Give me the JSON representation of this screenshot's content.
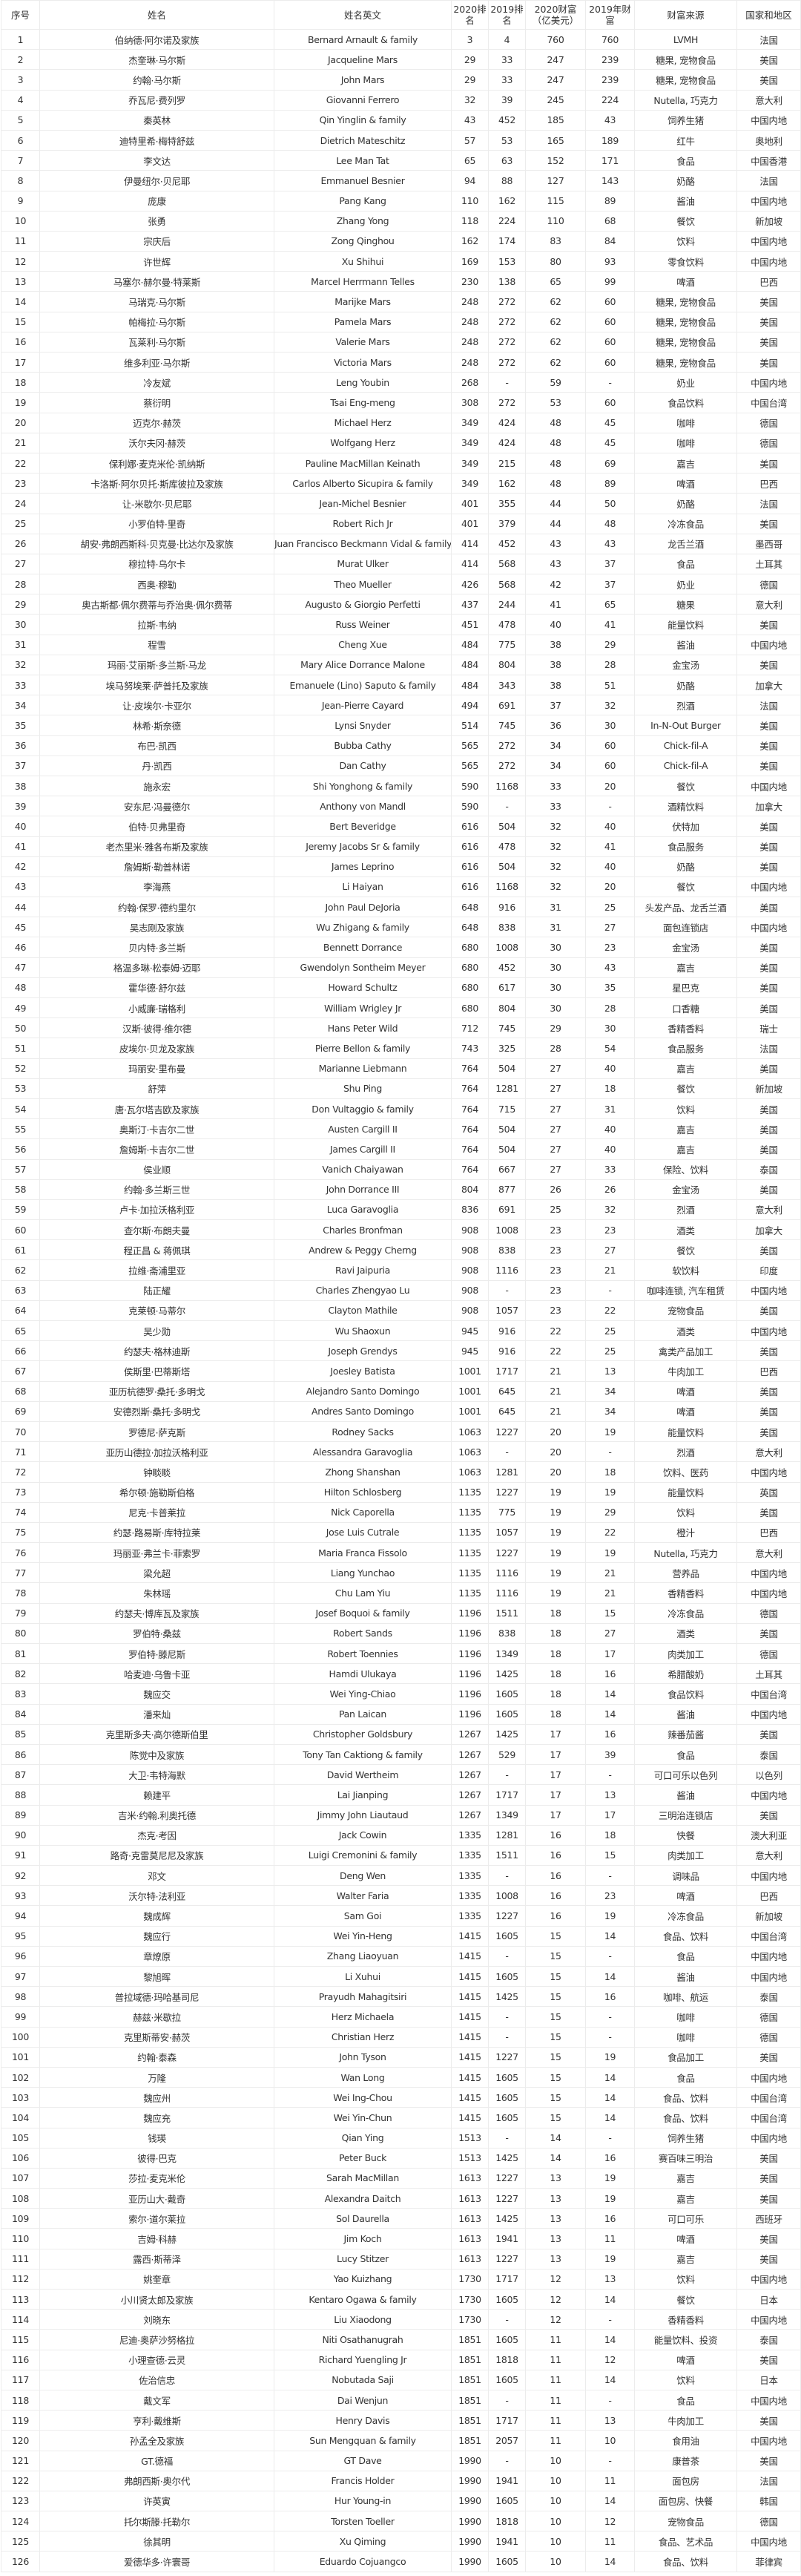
{
  "headers": [
    "序号",
    "姓名",
    "姓名英文",
    "2020排名",
    "2019排名",
    "2020财富（亿美元）",
    "2019年财富",
    "财富来源",
    "国家和地区"
  ],
  "rows": [
    [
      "1",
      "伯纳德·阿尔诺及家族",
      "Bernard Arnault & family",
      "3",
      "4",
      "760",
      "760",
      "LVMH",
      "法国"
    ],
    [
      "2",
      "杰奎琳·马尔斯",
      "Jacqueline Mars",
      "29",
      "33",
      "247",
      "239",
      "糖果, 宠物食品",
      "美国"
    ],
    [
      "3",
      "约翰·马尔斯",
      "John Mars",
      "29",
      "33",
      "247",
      "239",
      "糖果, 宠物食品",
      "美国"
    ],
    [
      "4",
      "乔瓦尼·费列罗",
      "Giovanni Ferrero",
      "32",
      "39",
      "245",
      "224",
      "Nutella, 巧克力",
      "意大利"
    ],
    [
      "5",
      "秦英林",
      "Qin Yinglin & family",
      "43",
      "452",
      "185",
      "43",
      "饲养生猪",
      "中国内地"
    ],
    [
      "6",
      "迪特里希·梅特舒兹",
      "Dietrich Mateschitz",
      "57",
      "53",
      "165",
      "189",
      "红牛",
      "奥地利"
    ],
    [
      "7",
      "李文达",
      "Lee Man Tat",
      "65",
      "63",
      "152",
      "171",
      "食品",
      "中国香港"
    ],
    [
      "8",
      "伊曼纽尔·贝尼耶",
      "Emmanuel Besnier",
      "94",
      "88",
      "127",
      "143",
      "奶酪",
      "法国"
    ],
    [
      "9",
      "庞康",
      "Pang Kang",
      "110",
      "162",
      "115",
      "89",
      "酱油",
      "中国内地"
    ],
    [
      "10",
      "张勇",
      "Zhang Yong",
      "118",
      "224",
      "110",
      "68",
      "餐饮",
      "新加坡"
    ],
    [
      "11",
      "宗庆后",
      "Zong Qinghou",
      "162",
      "174",
      "83",
      "84",
      "饮料",
      "中国内地"
    ],
    [
      "12",
      "许世辉",
      "Xu Shihui",
      "169",
      "153",
      "80",
      "93",
      "零食饮料",
      "中国内地"
    ],
    [
      "13",
      "马塞尔·赫尔曼·特莱斯",
      "Marcel Herrmann Telles",
      "230",
      "138",
      "65",
      "99",
      "啤酒",
      "巴西"
    ],
    [
      "14",
      "马瑞克·马尔斯",
      "Marijke Mars",
      "248",
      "272",
      "62",
      "60",
      "糖果, 宠物食品",
      "美国"
    ],
    [
      "15",
      "帕梅拉·马尔斯",
      "Pamela Mars",
      "248",
      "272",
      "62",
      "60",
      "糖果, 宠物食品",
      "美国"
    ],
    [
      "16",
      "瓦莱利·马尔斯",
      "Valerie Mars",
      "248",
      "272",
      "62",
      "60",
      "糖果, 宠物食品",
      "美国"
    ],
    [
      "17",
      "维多利亚·马尔斯",
      "Victoria Mars",
      "248",
      "272",
      "62",
      "60",
      "糖果, 宠物食品",
      "美国"
    ],
    [
      "18",
      "冷友斌",
      "Leng Youbin",
      "268",
      "-",
      "59",
      "-",
      "奶业",
      "中国内地"
    ],
    [
      "19",
      "蔡衍明",
      "Tsai Eng-meng",
      "308",
      "272",
      "53",
      "60",
      "食品饮料",
      "中国台湾"
    ],
    [
      "20",
      "迈克尔·赫茨",
      "Michael Herz",
      "349",
      "424",
      "48",
      "45",
      "咖啡",
      "德国"
    ],
    [
      "21",
      "沃尔夫冈·赫茨",
      "Wolfgang Herz",
      "349",
      "424",
      "48",
      "45",
      "咖啡",
      "德国"
    ],
    [
      "22",
      "保利娜·麦克米伦·凯纳斯",
      "Pauline MacMillan Keinath",
      "349",
      "215",
      "48",
      "69",
      "嘉吉",
      "美国"
    ],
    [
      "23",
      "卡洛斯·阿尔贝托·斯库彼拉及家族",
      "Carlos Alberto Sicupira & family",
      "349",
      "162",
      "48",
      "89",
      "啤酒",
      "巴西"
    ],
    [
      "24",
      "让-米歇尔·贝尼耶",
      "Jean-Michel Besnier",
      "401",
      "355",
      "44",
      "50",
      "奶酪",
      "法国"
    ],
    [
      "25",
      "小罗伯特·里奇",
      "Robert Rich Jr",
      "401",
      "379",
      "44",
      "48",
      "冷冻食品",
      "美国"
    ],
    [
      "26",
      "胡安·弗朗西斯科·贝克曼·比达尔及家族",
      "Juan Francisco Beckmann Vidal & family",
      "414",
      "452",
      "43",
      "43",
      "龙舌兰酒",
      "墨西哥"
    ],
    [
      "27",
      "穆拉特·乌尔卡",
      "Murat Ulker",
      "414",
      "568",
      "43",
      "37",
      "食品",
      "土耳其"
    ],
    [
      "28",
      "西奥·穆勒",
      "Theo Mueller",
      "426",
      "568",
      "42",
      "37",
      "奶业",
      "德国"
    ],
    [
      "29",
      "奥古斯都·佩尔费蒂与乔治奥·佩尔费蒂",
      "Augusto & Giorgio Perfetti",
      "437",
      "244",
      "41",
      "65",
      "糖果",
      "意大利"
    ],
    [
      "30",
      "拉斯·韦纳",
      "Russ Weiner",
      "451",
      "478",
      "40",
      "41",
      "能量饮料",
      "美国"
    ],
    [
      "31",
      "程雪",
      "Cheng Xue",
      "484",
      "775",
      "38",
      "29",
      "酱油",
      "中国内地"
    ],
    [
      "32",
      "玛丽·艾丽斯·多兰斯·马龙",
      "Mary Alice Dorrance Malone",
      "484",
      "804",
      "38",
      "28",
      "金宝汤",
      "美国"
    ],
    [
      "33",
      "埃马努埃莱·萨普托及家族",
      "Emanuele (Lino) Saputo & family",
      "484",
      "343",
      "38",
      "51",
      "奶酪",
      "加拿大"
    ],
    [
      "34",
      "让·皮埃尔·卡亚尔",
      "Jean-Pierre Cayard",
      "494",
      "691",
      "37",
      "32",
      "烈酒",
      "法国"
    ],
    [
      "35",
      "林希·斯奈德",
      "Lynsi Snyder",
      "514",
      "745",
      "36",
      "30",
      "In-N-Out Burger",
      "美国"
    ],
    [
      "36",
      "布巴·凯西",
      "Bubba Cathy",
      "565",
      "272",
      "34",
      "60",
      "Chick-fil-A",
      "美国"
    ],
    [
      "37",
      "丹·凯西",
      "Dan Cathy",
      "565",
      "272",
      "34",
      "60",
      "Chick-fil-A",
      "美国"
    ],
    [
      "38",
      "施永宏",
      "Shi Yonghong & family",
      "590",
      "1168",
      "33",
      "20",
      "餐饮",
      "中国内地"
    ],
    [
      "39",
      "安东尼·冯曼德尔",
      "Anthony von Mandl",
      "590",
      "-",
      "33",
      "-",
      "酒精饮料",
      "加拿大"
    ],
    [
      "40",
      "伯特·贝弗里奇",
      "Bert Beveridge",
      "616",
      "504",
      "32",
      "40",
      "伏特加",
      "美国"
    ],
    [
      "41",
      "老杰里米·雅各布斯及家族",
      "Jeremy Jacobs Sr & family",
      "616",
      "478",
      "32",
      "41",
      "食品服务",
      "美国"
    ],
    [
      "42",
      "詹姆斯·勒普林诺",
      "James Leprino",
      "616",
      "504",
      "32",
      "40",
      "奶酪",
      "美国"
    ],
    [
      "43",
      "李海燕",
      "Li Haiyan",
      "616",
      "1168",
      "32",
      "20",
      "餐饮",
      "中国内地"
    ],
    [
      "44",
      "约翰·保罗·德约里尔",
      "John Paul DeJoria",
      "648",
      "916",
      "31",
      "25",
      "头发产品、龙舌兰酒",
      "美国"
    ],
    [
      "45",
      "吴志刚及家族",
      "Wu Zhigang & family",
      "648",
      "838",
      "31",
      "27",
      "面包连锁店",
      "中国内地"
    ],
    [
      "46",
      "贝内特·多兰斯",
      "Bennett Dorrance",
      "680",
      "1008",
      "30",
      "23",
      "金宝汤",
      "美国"
    ],
    [
      "47",
      "格温多琳·松泰姆·迈耶",
      "Gwendolyn Sontheim Meyer",
      "680",
      "452",
      "30",
      "43",
      "嘉吉",
      "美国"
    ],
    [
      "48",
      "霍华德·舒尔兹",
      "Howard Schultz",
      "680",
      "617",
      "30",
      "35",
      "星巴克",
      "美国"
    ],
    [
      "49",
      "小威廉·瑞格利",
      "William Wrigley Jr",
      "680",
      "804",
      "30",
      "28",
      "口香糖",
      "美国"
    ],
    [
      "50",
      "汉斯·彼得·维尔德",
      "Hans Peter Wild",
      "712",
      "745",
      "29",
      "30",
      "香精香料",
      "瑞士"
    ],
    [
      "51",
      "皮埃尔·贝龙及家族",
      "Pierre Bellon & family",
      "743",
      "325",
      "28",
      "54",
      "食品服务",
      "法国"
    ],
    [
      "52",
      "玛丽安·里布曼",
      "Marianne Liebmann",
      "764",
      "504",
      "27",
      "40",
      "嘉吉",
      "美国"
    ],
    [
      "53",
      "舒萍",
      "Shu Ping",
      "764",
      "1281",
      "27",
      "18",
      "餐饮",
      "新加坡"
    ],
    [
      "54",
      "唐·瓦尔塔吉欧及家族",
      "Don Vultaggio & family",
      "764",
      "715",
      "27",
      "31",
      "饮料",
      "美国"
    ],
    [
      "55",
      "奥斯汀·卡吉尔二世",
      "Austen Cargill II",
      "764",
      "504",
      "27",
      "40",
      "嘉吉",
      "美国"
    ],
    [
      "56",
      "詹姆斯·卡吉尔二世",
      "James Cargill II",
      "764",
      "504",
      "27",
      "40",
      "嘉吉",
      "美国"
    ],
    [
      "57",
      "侯业顺",
      "Vanich Chaiyawan",
      "764",
      "667",
      "27",
      "33",
      "保险、饮料",
      "泰国"
    ],
    [
      "58",
      "约翰·多兰斯三世",
      "John Dorrance III",
      "804",
      "877",
      "26",
      "26",
      "金宝汤",
      "美国"
    ],
    [
      "59",
      "卢卡·加拉沃格利亚",
      "Luca Garavoglia",
      "836",
      "691",
      "25",
      "32",
      "烈酒",
      "意大利"
    ],
    [
      "60",
      "查尔斯·布朗夫曼",
      "Charles Bronfman",
      "908",
      "1008",
      "23",
      "23",
      "酒类",
      "加拿大"
    ],
    [
      "61",
      "程正昌 & 蒋佩琪",
      "Andrew & Peggy Cherng",
      "908",
      "838",
      "23",
      "27",
      "餐饮",
      "美国"
    ],
    [
      "62",
      "拉维·斋浦里亚",
      "Ravi Jaipuria",
      "908",
      "1116",
      "23",
      "21",
      "软饮料",
      "印度"
    ],
    [
      "63",
      "陆正耀",
      "Charles Zhengyao Lu",
      "908",
      "-",
      "23",
      "-",
      "咖啡连锁, 汽车租赁",
      "中国内地"
    ],
    [
      "64",
      "克莱顿·马蒂尔",
      "Clayton Mathile",
      "908",
      "1057",
      "23",
      "22",
      "宠物食品",
      "美国"
    ],
    [
      "65",
      "吴少勋",
      "Wu Shaoxun",
      "945",
      "916",
      "22",
      "25",
      "酒类",
      "中国内地"
    ],
    [
      "66",
      "约瑟夫·格林迪斯",
      "Joseph Grendys",
      "945",
      "916",
      "22",
      "25",
      "禽类产品加工",
      "美国"
    ],
    [
      "67",
      "侯斯里·巴蒂斯塔",
      "Joesley Batista",
      "1001",
      "1717",
      "21",
      "13",
      "牛肉加工",
      "巴西"
    ],
    [
      "68",
      "亚历杭德罗·桑托·多明戈",
      "Alejandro Santo Domingo",
      "1001",
      "645",
      "21",
      "34",
      "啤酒",
      "美国"
    ],
    [
      "69",
      "安德烈斯·桑托·多明戈",
      "Andres Santo Domingo",
      "1001",
      "645",
      "21",
      "34",
      "啤酒",
      "美国"
    ],
    [
      "70",
      "罗德尼·萨克斯",
      "Rodney Sacks",
      "1063",
      "1227",
      "20",
      "19",
      "能量饮料",
      "美国"
    ],
    [
      "71",
      "亚历山德拉·加拉沃格利亚",
      "Alessandra Garavoglia",
      "1063",
      "-",
      "20",
      "-",
      "烈酒",
      "意大利"
    ],
    [
      "72",
      "钟睒睒",
      "Zhong Shanshan",
      "1063",
      "1281",
      "20",
      "18",
      "饮料、医药",
      "中国内地"
    ],
    [
      "73",
      "希尔顿·施勒斯伯格",
      "Hilton Schlosberg",
      "1135",
      "1227",
      "19",
      "19",
      "能量饮料",
      "英国"
    ],
    [
      "74",
      "尼克·卡普莱拉",
      "Nick Caporella",
      "1135",
      "775",
      "19",
      "29",
      "饮料",
      "美国"
    ],
    [
      "75",
      "约瑟·路易斯·库特拉莱",
      "Jose Luis Cutrale",
      "1135",
      "1057",
      "19",
      "22",
      "橙汁",
      "巴西"
    ],
    [
      "76",
      "玛丽亚·弗兰卡·菲索罗",
      "Maria Franca Fissolo",
      "1135",
      "1227",
      "19",
      "19",
      "Nutella, 巧克力",
      "意大利"
    ],
    [
      "77",
      "梁允超",
      "Liang Yunchao",
      "1135",
      "1116",
      "19",
      "21",
      "营养品",
      "中国内地"
    ],
    [
      "78",
      "朱林瑶",
      "Chu Lam Yiu",
      "1135",
      "1116",
      "19",
      "21",
      "香精香料",
      "中国内地"
    ],
    [
      "79",
      "约瑟夫·博库瓦及家族",
      "Josef Boquoi & family",
      "1196",
      "1511",
      "18",
      "15",
      "冷冻食品",
      "德国"
    ],
    [
      "80",
      "罗伯特·桑兹",
      "Robert Sands",
      "1196",
      "838",
      "18",
      "27",
      "酒类",
      "美国"
    ],
    [
      "81",
      "罗伯特·滕尼斯",
      "Robert Toennies",
      "1196",
      "1349",
      "18",
      "17",
      "肉类加工",
      "德国"
    ],
    [
      "82",
      "哈麦迪·乌鲁卡亚",
      "Hamdi Ulukaya",
      "1196",
      "1425",
      "18",
      "16",
      "希腊酸奶",
      "土耳其"
    ],
    [
      "83",
      "魏应交",
      "Wei Ying-Chiao",
      "1196",
      "1605",
      "18",
      "14",
      "食品饮料",
      "中国台湾"
    ],
    [
      "84",
      "潘来灿",
      "Pan Laican",
      "1196",
      "1605",
      "18",
      "14",
      "酱油",
      "中国内地"
    ],
    [
      "85",
      "克里斯多夫·高尔德斯伯里",
      "Christopher Goldsbury",
      "1267",
      "1425",
      "17",
      "16",
      "辣番茄酱",
      "美国"
    ],
    [
      "86",
      "陈觉中及家族",
      "Tony Tan Caktiong & family",
      "1267",
      "529",
      "17",
      "39",
      "食品",
      "泰国"
    ],
    [
      "87",
      "大卫·韦特海默",
      "David Wertheim",
      "1267",
      "-",
      "17",
      "-",
      "可口可乐以色列",
      "以色列"
    ],
    [
      "88",
      "赖建平",
      "Lai Jianping",
      "1267",
      "1717",
      "17",
      "13",
      "酱油",
      "中国内地"
    ],
    [
      "89",
      "吉米·约翰.利奥托德",
      "Jimmy John Liautaud",
      "1267",
      "1349",
      "17",
      "17",
      "三明治连锁店",
      "美国"
    ],
    [
      "90",
      "杰克·考因",
      "Jack Cowin",
      "1335",
      "1281",
      "16",
      "18",
      "快餐",
      "澳大利亚"
    ],
    [
      "91",
      "路奇·克雷莫尼尼及家族",
      "Luigi Cremonini & family",
      "1335",
      "1511",
      "16",
      "15",
      "肉类加工",
      "意大利"
    ],
    [
      "92",
      "邓文",
      "Deng Wen",
      "1335",
      "-",
      "16",
      "-",
      "调味品",
      "中国内地"
    ],
    [
      "93",
      "沃尔特·法利亚",
      "Walter Faria",
      "1335",
      "1008",
      "16",
      "23",
      "啤酒",
      "巴西"
    ],
    [
      "94",
      "魏成辉",
      "Sam Goi",
      "1335",
      "1227",
      "16",
      "19",
      "冷冻食品",
      "新加坡"
    ],
    [
      "95",
      "魏应行",
      "Wei Yin-Heng",
      "1415",
      "1605",
      "15",
      "14",
      "食品、饮料",
      "中国台湾"
    ],
    [
      "96",
      "章燎原",
      "Zhang Liaoyuan",
      "1415",
      "-",
      "15",
      "-",
      "食品",
      "中国内地"
    ],
    [
      "97",
      "黎旭晖",
      "Li Xuhui",
      "1415",
      "1605",
      "15",
      "14",
      "酱油",
      "中国内地"
    ],
    [
      "98",
      "普拉域德·玛哈基司尼",
      "Prayudh Mahagitsiri",
      "1415",
      "1425",
      "15",
      "16",
      "咖啡、航运",
      "泰国"
    ],
    [
      "99",
      "赫兹·米歇拉",
      "Herz Michaela",
      "1415",
      "-",
      "15",
      "-",
      "咖啡",
      "德国"
    ],
    [
      "100",
      "克里斯蒂安·赫茨",
      "Christian Herz",
      "1415",
      "-",
      "15",
      "-",
      "咖啡",
      "德国"
    ],
    [
      "101",
      "约翰·泰森",
      "John Tyson",
      "1415",
      "1227",
      "15",
      "19",
      "食品加工",
      "美国"
    ],
    [
      "102",
      "万隆",
      "Wan Long",
      "1415",
      "1605",
      "15",
      "14",
      "食品",
      "中国内地"
    ],
    [
      "103",
      "魏应州",
      "Wei Ing-Chou",
      "1415",
      "1605",
      "15",
      "14",
      "食品、饮料",
      "中国台湾"
    ],
    [
      "104",
      "魏应充",
      "Wei Yin-Chun",
      "1415",
      "1605",
      "15",
      "14",
      "食品、饮料",
      "中国台湾"
    ],
    [
      "105",
      "钱瑛",
      "Qian Ying",
      "1513",
      "-",
      "14",
      "-",
      "饲养生猪",
      "中国内地"
    ],
    [
      "106",
      "彼得·巴克",
      "Peter Buck",
      "1513",
      "1425",
      "14",
      "16",
      "赛百味三明治",
      "美国"
    ],
    [
      "107",
      "莎拉·麦克米伦",
      "Sarah MacMillan",
      "1613",
      "1227",
      "13",
      "19",
      "嘉吉",
      "美国"
    ],
    [
      "108",
      "亚历山大·戴奇",
      "Alexandra Daitch",
      "1613",
      "1227",
      "13",
      "19",
      "嘉吉",
      "美国"
    ],
    [
      "109",
      "索尔·道尔莱拉",
      "Sol Daurella",
      "1613",
      "1425",
      "13",
      "16",
      "可口可乐",
      "西班牙"
    ],
    [
      "110",
      "吉姆·科赫",
      "Jim Koch",
      "1613",
      "1941",
      "13",
      "11",
      "啤酒",
      "美国"
    ],
    [
      "111",
      "露西·斯蒂泽",
      "Lucy Stitzer",
      "1613",
      "1227",
      "13",
      "19",
      "嘉吉",
      "美国"
    ],
    [
      "112",
      "姚奎章",
      "Yao Kuizhang",
      "1730",
      "1717",
      "12",
      "13",
      "饮料",
      "中国内地"
    ],
    [
      "113",
      "小川贤太郎及家族",
      "Kentaro Ogawa & family",
      "1730",
      "1605",
      "12",
      "14",
      "餐饮",
      "日本"
    ],
    [
      "114",
      "刘晓东",
      "Liu Xiaodong",
      "1730",
      "-",
      "12",
      "-",
      "香精香料",
      "中国内地"
    ],
    [
      "115",
      "尼迪·奥萨沙努格拉",
      "Niti Osathanugrah",
      "1851",
      "1605",
      "11",
      "14",
      "能量饮料、投资",
      "泰国"
    ],
    [
      "116",
      "小理查德·云灵",
      "Richard Yuengling Jr",
      "1851",
      "1818",
      "11",
      "12",
      "啤酒",
      "美国"
    ],
    [
      "117",
      "佐治信忠",
      "Nobutada Saji",
      "1851",
      "1605",
      "11",
      "14",
      "饮料",
      "日本"
    ],
    [
      "118",
      "戴文军",
      "Dai Wenjun",
      "1851",
      "-",
      "11",
      "-",
      "食品",
      "中国内地"
    ],
    [
      "119",
      "亨利·戴维斯",
      "Henry Davis",
      "1851",
      "1717",
      "11",
      "13",
      "牛肉加工",
      "美国"
    ],
    [
      "120",
      "孙孟全及家族",
      "Sun Mengquan & family",
      "1851",
      "2057",
      "11",
      "10",
      "食用油",
      "中国内地"
    ],
    [
      "121",
      "GT.德福",
      "GT Dave",
      "1990",
      "-",
      "10",
      "-",
      "康普茶",
      "美国"
    ],
    [
      "122",
      "弗朗西斯·奥尔代",
      "Francis Holder",
      "1990",
      "1941",
      "10",
      "11",
      "面包房",
      "法国"
    ],
    [
      "123",
      "许英寅",
      "Hur Young-in",
      "1990",
      "1605",
      "10",
      "14",
      "面包房、快餐",
      "韩国"
    ],
    [
      "124",
      "托尔斯滕·托勒尔",
      "Torsten Toeller",
      "1990",
      "1818",
      "10",
      "12",
      "宠物食品",
      "德国"
    ],
    [
      "125",
      "徐其明",
      "Xu Qiming",
      "1990",
      "1941",
      "10",
      "11",
      "食品、艺术品",
      "中国内地"
    ],
    [
      "126",
      "爱德华多·许寰哥",
      "Eduardo Cojuangco",
      "1990",
      "1605",
      "10",
      "14",
      "食品、饮料",
      "菲律宾"
    ]
  ]
}
